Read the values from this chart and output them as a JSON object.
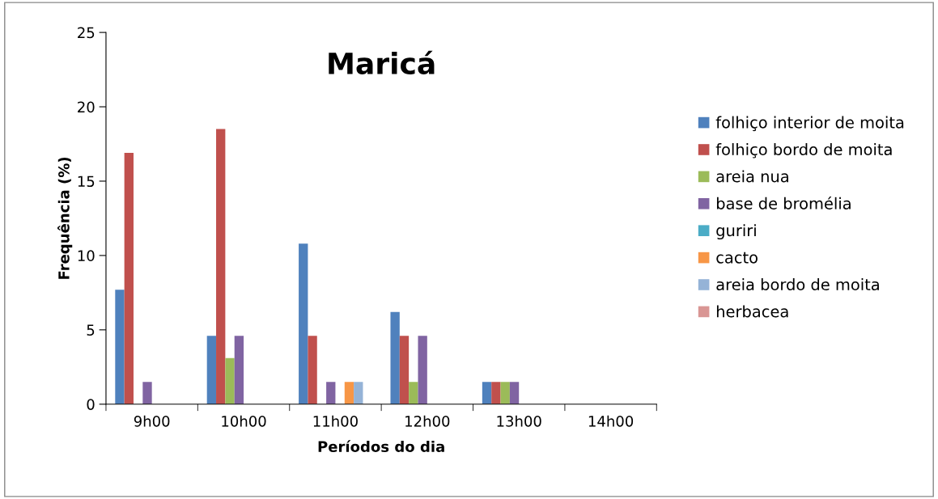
{
  "chart_data": {
    "type": "bar",
    "title": "Maricá",
    "xlabel": "Períodos do dia",
    "ylabel": "Frequência (%)",
    "categories": [
      "9h00",
      "10h00",
      "11h00",
      "12h00",
      "13h00",
      "14h00"
    ],
    "series": [
      {
        "name": "folhiço interior de moita",
        "color": "#4f81bd",
        "values": [
          7.7,
          4.6,
          10.8,
          6.2,
          1.5,
          0
        ]
      },
      {
        "name": "folhiço bordo de moita",
        "color": "#c0504d",
        "values": [
          16.9,
          18.5,
          4.6,
          4.6,
          1.5,
          0
        ]
      },
      {
        "name": "areia nua",
        "color": "#9bbb59",
        "values": [
          0,
          3.1,
          0,
          1.5,
          1.5,
          0
        ]
      },
      {
        "name": "base de bromélia",
        "color": "#8064a2",
        "values": [
          1.5,
          4.6,
          1.5,
          4.6,
          1.5,
          0
        ]
      },
      {
        "name": "guriri",
        "color": "#4bacc6",
        "values": [
          0,
          0,
          0,
          0,
          0,
          0
        ]
      },
      {
        "name": "cacto",
        "color": "#f79646",
        "values": [
          0,
          0,
          1.5,
          0,
          0,
          0
        ]
      },
      {
        "name": "areia bordo de moita",
        "color": "#95b3d7",
        "values": [
          0,
          0,
          1.5,
          0,
          0,
          0
        ]
      },
      {
        "name": "herbacea",
        "color": "#d99694",
        "values": [
          0,
          0,
          0,
          0,
          0,
          0
        ]
      }
    ],
    "ylim": [
      0,
      25
    ],
    "yticks": [
      0,
      5,
      10,
      15,
      20,
      25
    ],
    "grid": false,
    "legend": "right"
  }
}
